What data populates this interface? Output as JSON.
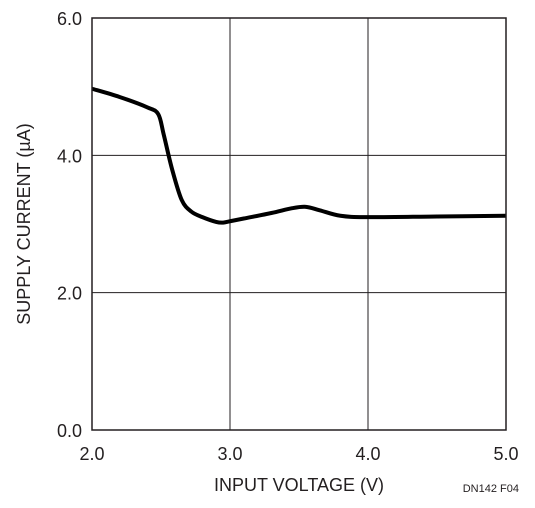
{
  "chart_data": {
    "type": "line",
    "xlabel": "INPUT VOLTAGE (V)",
    "ylabel": "SUPPLY CURRENT (µA)",
    "xlim": [
      2.0,
      5.0
    ],
    "ylim": [
      0.0,
      6.0
    ],
    "x_ticks": [
      "2.0",
      "3.0",
      "4.0",
      "5.0"
    ],
    "y_ticks": [
      "0.0",
      "2.0",
      "4.0",
      "6.0"
    ],
    "grid": true,
    "figure_id": "DN142 F04",
    "series": [
      {
        "color": "#000000",
        "x": [
          2.0,
          2.2,
          2.4,
          2.48,
          2.52,
          2.58,
          2.65,
          2.72,
          2.8,
          2.9,
          2.95,
          3.0,
          3.1,
          3.3,
          3.45,
          3.55,
          3.65,
          3.8,
          4.0,
          4.5,
          5.0
        ],
        "y": [
          4.97,
          4.85,
          4.7,
          4.6,
          4.3,
          3.8,
          3.35,
          3.18,
          3.1,
          3.03,
          3.02,
          3.04,
          3.08,
          3.16,
          3.23,
          3.25,
          3.2,
          3.12,
          3.1,
          3.11,
          3.12
        ]
      }
    ]
  }
}
